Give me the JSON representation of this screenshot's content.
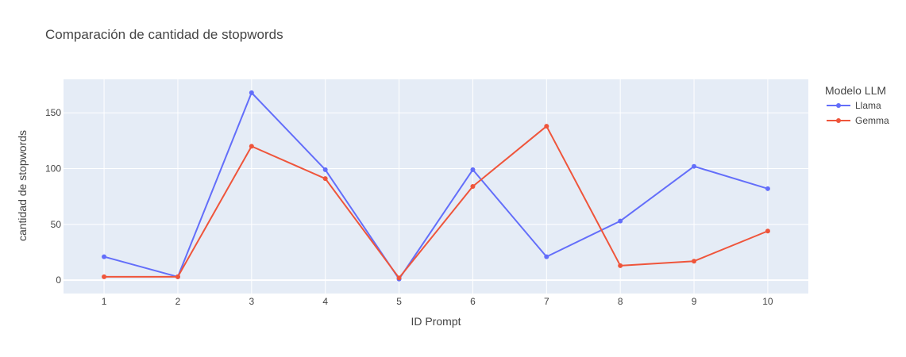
{
  "chart_data": {
    "type": "line",
    "title": "Comparación de cantidad de stopwords",
    "xlabel": "ID Prompt",
    "ylabel": "cantidad de stopwords",
    "x": [
      1,
      2,
      3,
      4,
      5,
      6,
      7,
      8,
      9,
      10
    ],
    "xlim": [
      0.45,
      10.55
    ],
    "ylim": [
      -12,
      180
    ],
    "yticks": [
      0,
      50,
      100,
      150
    ],
    "grid": true,
    "legend": {
      "title": "Modelo LLM",
      "placement": "right"
    },
    "series": [
      {
        "name": "Llama",
        "color": "#636efa",
        "values": [
          21,
          3,
          168,
          99,
          1,
          99,
          21,
          53,
          102,
          82
        ]
      },
      {
        "name": "Gemma",
        "color": "#ef553b",
        "values": [
          3,
          3,
          120,
          91,
          2,
          84,
          138,
          13,
          17,
          44
        ]
      }
    ],
    "plot_background": "#e5ecf6"
  }
}
